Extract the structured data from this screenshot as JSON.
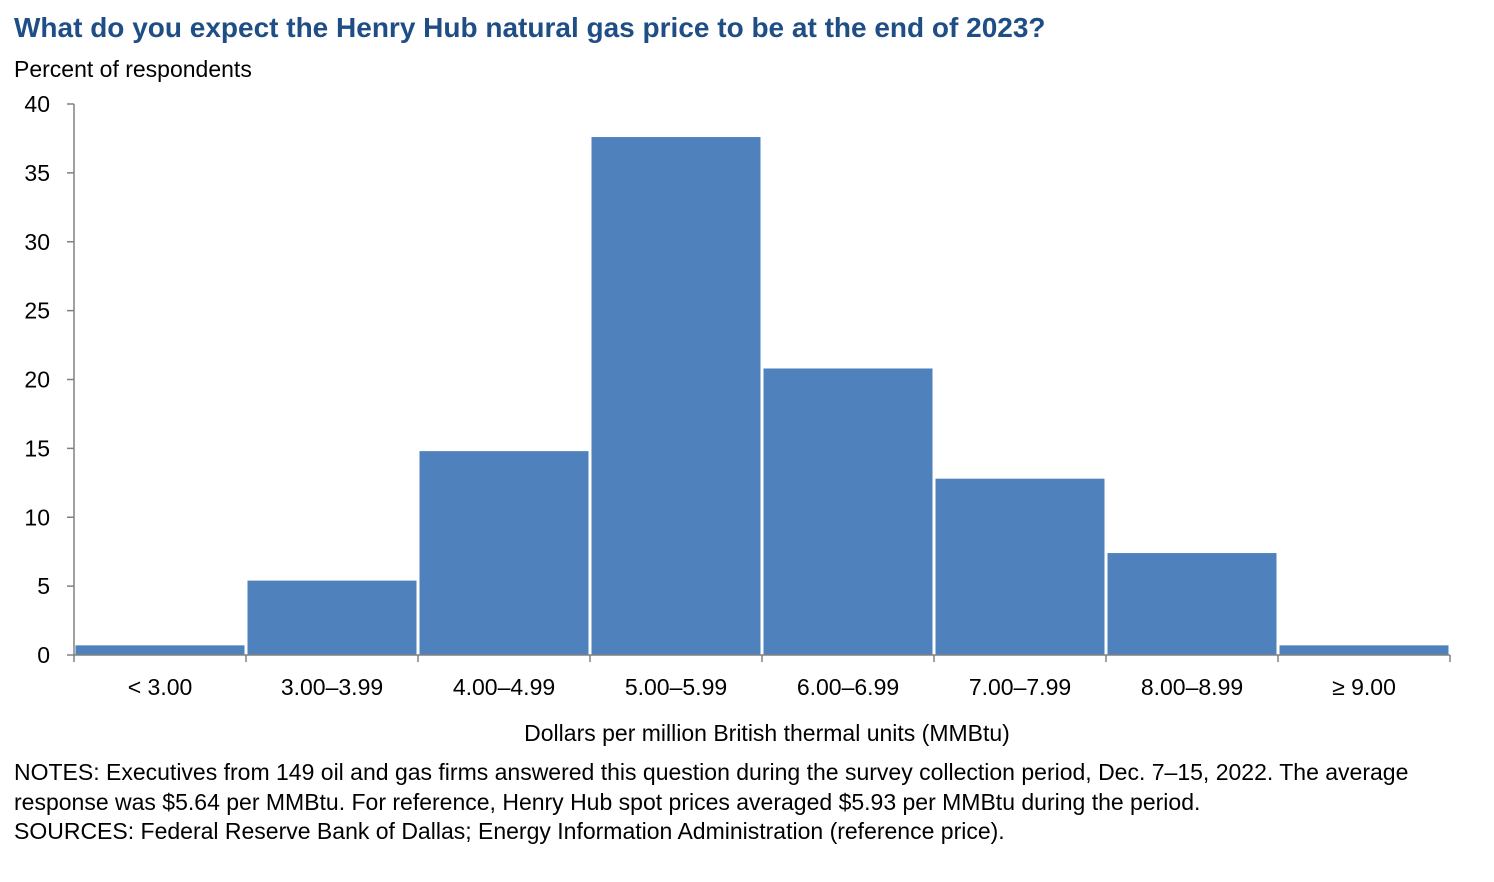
{
  "title": "What do you expect the Henry Hub natural gas price to be at the end of 2023?",
  "subtitle": "Percent of respondents",
  "notes": {
    "line1": "NOTES: Executives from 149 oil and gas firms answered this question during the survey collection period, Dec. 7–15, 2022. The average response was $5.64 per MMBtu. For reference, Henry Hub spot prices averaged $5.93 per MMBtu during the period.",
    "sources": "SOURCES: Federal Reserve Bank of Dallas; Energy Information Administration (reference price)."
  },
  "chart_data": {
    "type": "bar",
    "title": "What do you expect the Henry Hub natural gas price to be at the end of 2023?",
    "ylabel": "Percent of respondents",
    "xlabel": "Dollars per million British thermal units (MMBtu)",
    "categories": [
      "< 3.00",
      "3.00–3.99",
      "4.00–4.99",
      "5.00–5.99",
      "6.00–6.99",
      "7.00–7.99",
      "8.00–8.99",
      "≥ 9.00"
    ],
    "values": [
      0.7,
      5.4,
      14.8,
      37.6,
      20.8,
      12.8,
      7.4,
      0.7
    ],
    "ylim": [
      0,
      40
    ],
    "yticks": [
      0,
      5,
      10,
      15,
      20,
      25,
      30,
      35,
      40
    ],
    "grid": false,
    "legend": "none",
    "colors": {
      "bar": "#4f81bd",
      "title": "#1f4e86",
      "axis": "#808080"
    }
  }
}
